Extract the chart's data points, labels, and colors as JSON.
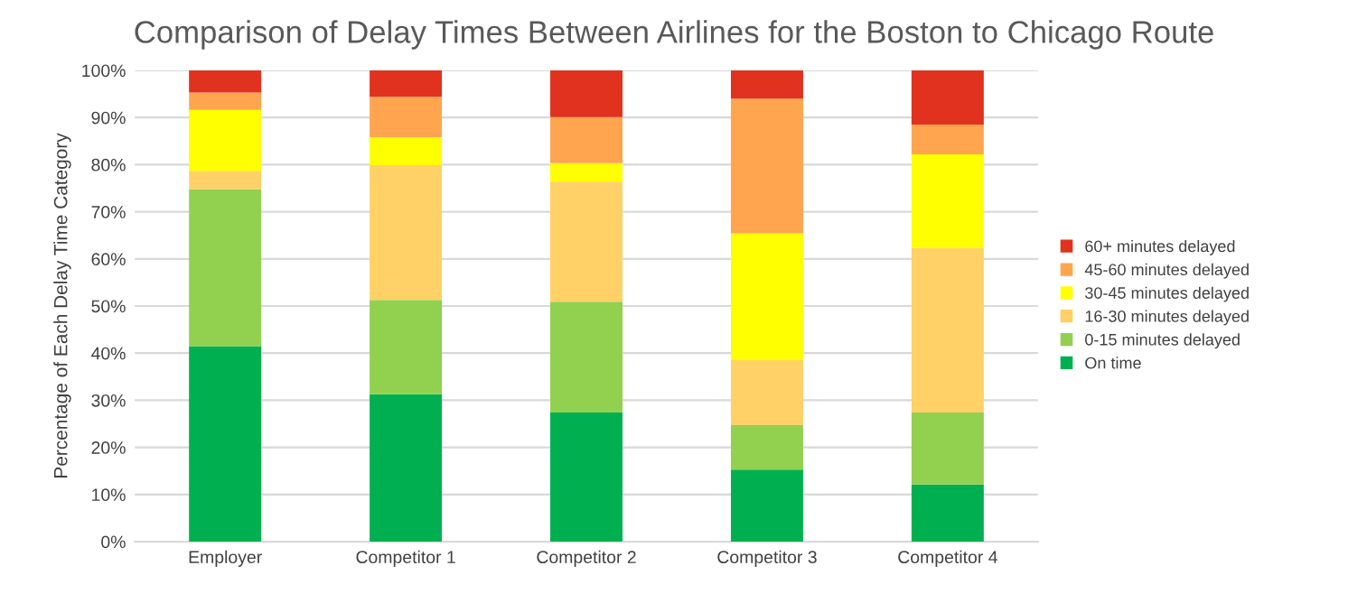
{
  "chart_data": {
    "type": "bar",
    "stacked": true,
    "title": "Comparison of Delay Times Between Airlines for the Boston to Chicago Route",
    "ylabel": "Percentage of Each Delay Time Category",
    "categories": [
      "Employer",
      "Competitor 1",
      "Competitor 2",
      "Competitor 3",
      "Competitor 4"
    ],
    "series": [
      {
        "name": "On time",
        "color": "#00b050",
        "values": [
          41.5,
          31.3,
          27.4,
          15.3,
          12.1
        ]
      },
      {
        "name": "0-15 minutes delayed",
        "color": "#92d050",
        "values": [
          33.3,
          20.0,
          23.5,
          9.4,
          15.3
        ]
      },
      {
        "name": "16-30 minutes delayed",
        "color": "#ffd166",
        "values": [
          3.9,
          28.6,
          25.5,
          13.8,
          34.9
        ]
      },
      {
        "name": "30-45 minutes delayed",
        "color": "#ffff00",
        "values": [
          12.9,
          5.9,
          3.9,
          26.9,
          19.9
        ]
      },
      {
        "name": "45-60 minutes delayed",
        "color": "#ffa54f",
        "values": [
          3.7,
          8.6,
          9.8,
          28.6,
          6.3
        ]
      },
      {
        "name": "60+ minutes delayed",
        "color": "#e0321e",
        "values": [
          4.7,
          5.6,
          9.9,
          6.0,
          11.5
        ]
      }
    ],
    "ylim": [
      0,
      100
    ],
    "yticks": [
      {
        "value": 0,
        "label": "0%"
      },
      {
        "value": 10,
        "label": "10%"
      },
      {
        "value": 20,
        "label": "20%"
      },
      {
        "value": 30,
        "label": "30%"
      },
      {
        "value": 40,
        "label": "40%"
      },
      {
        "value": 50,
        "label": "50%"
      },
      {
        "value": 60,
        "label": "60%"
      },
      {
        "value": 70,
        "label": "70%"
      },
      {
        "value": 80,
        "label": "80%"
      },
      {
        "value": 90,
        "label": "90%"
      },
      {
        "value": 100,
        "label": "100%"
      }
    ],
    "grid": "y",
    "legend": "right"
  }
}
